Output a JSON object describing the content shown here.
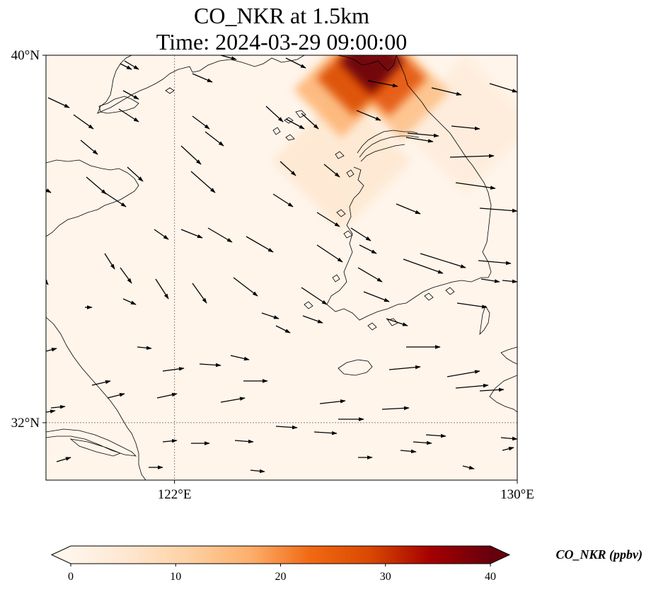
{
  "title": {
    "line1": "CO_NKR at 1.5km",
    "line2": "Time: 2024-03-29 09:00:00"
  },
  "map": {
    "lon_range": [
      119.0,
      130.0
    ],
    "lat_range": [
      30.75,
      40.0
    ],
    "gridlines_lon": [
      122
    ],
    "gridlines_lat": [
      32
    ],
    "xticks": [
      {
        "value": 122,
        "label": "122°E"
      },
      {
        "value": 130,
        "label": "130°E"
      }
    ],
    "yticks": [
      {
        "value": 40,
        "label": "40°N"
      },
      {
        "value": 32,
        "label": "32°N"
      }
    ]
  },
  "colorbar": {
    "label": "CO_NKR (ppbv)",
    "min": 0,
    "max": 40,
    "ticks": [
      {
        "value": 0,
        "label": "0"
      },
      {
        "value": 10,
        "label": "10"
      },
      {
        "value": 20,
        "label": "20"
      },
      {
        "value": 30,
        "label": "30"
      },
      {
        "value": 40,
        "label": "40"
      }
    ],
    "colors": [
      "#fff5eb",
      "#fee6ce",
      "#fdd0a2",
      "#fdae6b",
      "#f16913",
      "#d94801",
      "#a50000",
      "#67000d"
    ],
    "extend": "both"
  },
  "chart_data": {
    "type": "heatmap",
    "variable": "CO_NKR",
    "units": "ppbv",
    "hotspots": [
      {
        "lon": 126.6,
        "lat": 39.85,
        "value": 40
      },
      {
        "lon": 126.2,
        "lat": 39.5,
        "value": 28
      },
      {
        "lon": 127.0,
        "lat": 39.5,
        "value": 26
      },
      {
        "lon": 125.9,
        "lat": 39.25,
        "value": 16
      },
      {
        "lon": 127.3,
        "lat": 39.2,
        "value": 14
      },
      {
        "lon": 125.9,
        "lat": 37.7,
        "value": 5
      },
      {
        "lon": 128.8,
        "lat": 38.5,
        "value": 3
      }
    ],
    "background_value": 1
  }
}
